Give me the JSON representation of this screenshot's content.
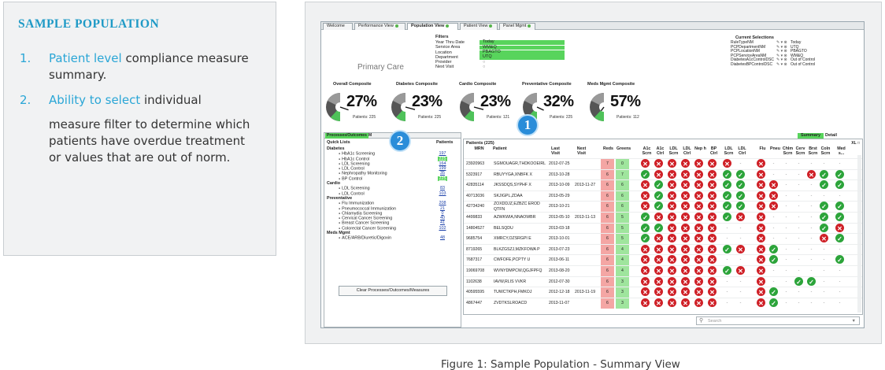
{
  "info": {
    "title": "SAMPLE POPULATION",
    "item1_num": "1.",
    "item1_hl": "Patient level",
    "item1_rest": " compliance measure summary.",
    "item2_num": "2.",
    "item2_hl": "Ability to select",
    "item2_rest": " individual",
    "item2_cont": "measure filter to determine which patients have overdue treatment or values that are out of norm."
  },
  "app": {
    "tabs": [
      "Welcome",
      "Performance View",
      "Population View",
      "Patient View",
      "Panel Mgmt"
    ],
    "active_tab": "Population View",
    "primary_care": "Primary Care",
    "filters_title": "Filters",
    "filters": [
      {
        "label": "Year Thru Date",
        "value": "Today"
      },
      {
        "label": "Service Area",
        "value": "WM&Q"
      },
      {
        "label": "Location",
        "value": "PBAGTO"
      },
      {
        "label": "Department",
        "value": "UTQ"
      },
      {
        "label": "Provider",
        "value": "○"
      },
      {
        "label": "Next Visit",
        "value": "○"
      }
    ],
    "current_selections_title": "Current Selections",
    "current_selections": [
      {
        "field": "RuleTypeNM",
        "value": "Today"
      },
      {
        "field": "PCPDepartmentNM",
        "value": "UTQ"
      },
      {
        "field": "PCPLocationNM",
        "value": "PBAGTO"
      },
      {
        "field": "PCPServiceAreaNM",
        "value": "WM&Q"
      },
      {
        "field": "DiabetesA1cControlDSC",
        "value": "Out of Control"
      },
      {
        "field": "DiabetesBPControlDSC",
        "value": "Out of Control"
      }
    ],
    "composites": [
      {
        "label": "Overall Composite",
        "pct": "27%",
        "patients": "Patients: 225",
        "value": 27
      },
      {
        "label": "Diabetes Composite",
        "pct": "23%",
        "patients": "Patients: 225",
        "value": 23
      },
      {
        "label": "Cardio Composite",
        "pct": "23%",
        "patients": "Patients: 121",
        "value": 23
      },
      {
        "label": "Preventative Composite",
        "pct": "32%",
        "patients": "Patients: 225",
        "value": 32
      },
      {
        "label": "Meds Mgmt Composite",
        "pct": "57%",
        "patients": "Patients: 112",
        "value": 57
      }
    ],
    "badge1": "1",
    "badge2": "2",
    "quick": {
      "tab1": "Processes/Outcomes",
      "tab2": "M",
      "head": "Quick Lists",
      "head_r": "Patients",
      "rows": [
        {
          "type": "cat",
          "name": "Diabetes"
        },
        {
          "type": "item",
          "name": "HbA1c Screening",
          "count": "197"
        },
        {
          "type": "item",
          "name": "HbA1c Control",
          "count": "225",
          "hi": true
        },
        {
          "type": "item",
          "name": "LDL Screening",
          "count": "164"
        },
        {
          "type": "item",
          "name": "LDL Control",
          "count": "199"
        },
        {
          "type": "item",
          "name": "Nephropathy Monitoring",
          "count": "35"
        },
        {
          "type": "item",
          "name": "BP Control",
          "count": "225",
          "hi": true
        },
        {
          "type": "cat",
          "name": "Cardio"
        },
        {
          "type": "item",
          "name": "LDL Screening",
          "count": "83"
        },
        {
          "type": "item",
          "name": "LDL Control",
          "count": "103"
        },
        {
          "type": "cat",
          "name": "Preventative"
        },
        {
          "type": "item",
          "name": "Flu Immunization",
          "count": "208"
        },
        {
          "type": "item",
          "name": "Pneumococcal Immunization",
          "count": "21"
        },
        {
          "type": "item",
          "name": "Chlamydia Screening",
          "count": "0"
        },
        {
          "type": "item",
          "name": "Cervical Cancer Screening",
          "count": "40"
        },
        {
          "type": "item",
          "name": "Breast Cancer Screening",
          "count": "41"
        },
        {
          "type": "item",
          "name": "Colorectal Cancer Screening",
          "count": "102"
        },
        {
          "type": "cat",
          "name": "Meds Mgmt"
        },
        {
          "type": "item",
          "name": "ACE/ARB/Diuretic/Digoxin",
          "count": "48"
        }
      ],
      "clear_btn": "Clear Processes/Outcomes/Measures"
    },
    "grid": {
      "summary_tab": "Summary",
      "detail_tab": "Detail",
      "title": "Patients (225)",
      "xl": "XL □",
      "headers": [
        "MRN",
        "Patient",
        "Last Visit",
        "Next Visit",
        "Reds",
        "Greens",
        "A1c Scrn",
        "A1c Ctrl",
        "LDL Scrn",
        "LDL Ctrl",
        "Nep h",
        "BP Ctrl",
        "LDL Scrn",
        "LDL Ctrl",
        "Flu",
        "Pneu",
        "Chlm Scrn",
        "Cerv Scrn",
        "Brst Scrn",
        "Coln Scrn",
        "Med s..."
      ],
      "rows": [
        {
          "mrn": "23920963",
          "name": "SGMOUAGR,THDKOOEIRL",
          "last": "2012-07-25",
          "next": "",
          "reds": "7",
          "greens": "0",
          "marks": "xxxxxx|x.|x......"
        },
        {
          "mrn": "5323917",
          "name": "RBUYYGA,XNBFK X",
          "last": "2013-10-28",
          "next": "",
          "reds": "6",
          "greens": "7",
          "marks": "oxxxxx|oo|x...xoo."
        },
        {
          "mrn": "42835114",
          "name": "JKSSDQS,SYPHF X",
          "last": "2013-10-09",
          "next": "2013-11-27",
          "reds": "6",
          "greens": "6",
          "marks": "xoxxxx|oo|xx...oo."
        },
        {
          "mrn": "40713036",
          "name": "SKJIGPL,ZDAA",
          "last": "2013-05-29",
          "next": "",
          "reds": "6",
          "greens": "6",
          "marks": "xoxxxx|oo|xx.....o"
        },
        {
          "mrn": "42734240",
          "name": "ZOXDDJZ,EZBZC EROD QTFN",
          "last": "2013-10-21",
          "next": "",
          "reds": "6",
          "greens": "6",
          "marks": "xoxxxx|oo|xx...oo."
        },
        {
          "mrn": "4499833",
          "name": "AZWKWIA,NNAOWBR",
          "last": "2013-05-10",
          "next": "2013-11-13",
          "reds": "6",
          "greens": "5",
          "marks": "oxxxxx|ox|x....oo."
        },
        {
          "mrn": "14804527",
          "name": "BELSQDU",
          "last": "2013-03-18",
          "next": "",
          "reds": "6",
          "greens": "5",
          "marks": "ooxxxx|..|x....ox."
        },
        {
          "mrn": "9685754",
          "name": "XMRCY,OZSRGPI E",
          "last": "2013-10-01",
          "next": "",
          "reds": "6",
          "greens": "5",
          "marks": "oxxxxx|..|x....xo."
        },
        {
          "mrn": "8719265",
          "name": "BLKZGSZJ,MZKFOWA P",
          "last": "2013-07-23",
          "next": "",
          "reds": "6",
          "greens": "4",
          "marks": "xxxxxx|ox|xo......"
        },
        {
          "mrn": "7687317",
          "name": "CWFOFE,PCPTY U",
          "last": "2013-06-11",
          "next": "",
          "reds": "6",
          "greens": "4",
          "marks": "xxxxxx|..|xo....o."
        },
        {
          "mrn": "19069708",
          "name": "WVNYDMPCW,QGJFPFQ",
          "last": "2013-08-20",
          "next": "",
          "reds": "6",
          "greens": "4",
          "marks": "xxxxxx|ox|x......o"
        },
        {
          "mrn": "1102638",
          "name": "IAVW,RLIS VVKR",
          "last": "2012-07-30",
          "next": "",
          "reds": "6",
          "greens": "3",
          "marks": "xxxxxx|..|x..oo..."
        },
        {
          "mrn": "40595595",
          "name": "TUWCTKPH,FMKOJ",
          "last": "2012-12-18",
          "next": "2013-11-19",
          "reds": "6",
          "greens": "3",
          "marks": "xxxxxx|..|xo.....o"
        },
        {
          "mrn": "4867447",
          "name": "ZVDTKSLROACD",
          "last": "2013-11-07",
          "next": "",
          "reds": "6",
          "greens": "3",
          "marks": "xxxxxx|..|xo......"
        }
      ]
    },
    "search_placeholder": "Search"
  },
  "caption": "Figure 1: Sample Population - Summary View"
}
